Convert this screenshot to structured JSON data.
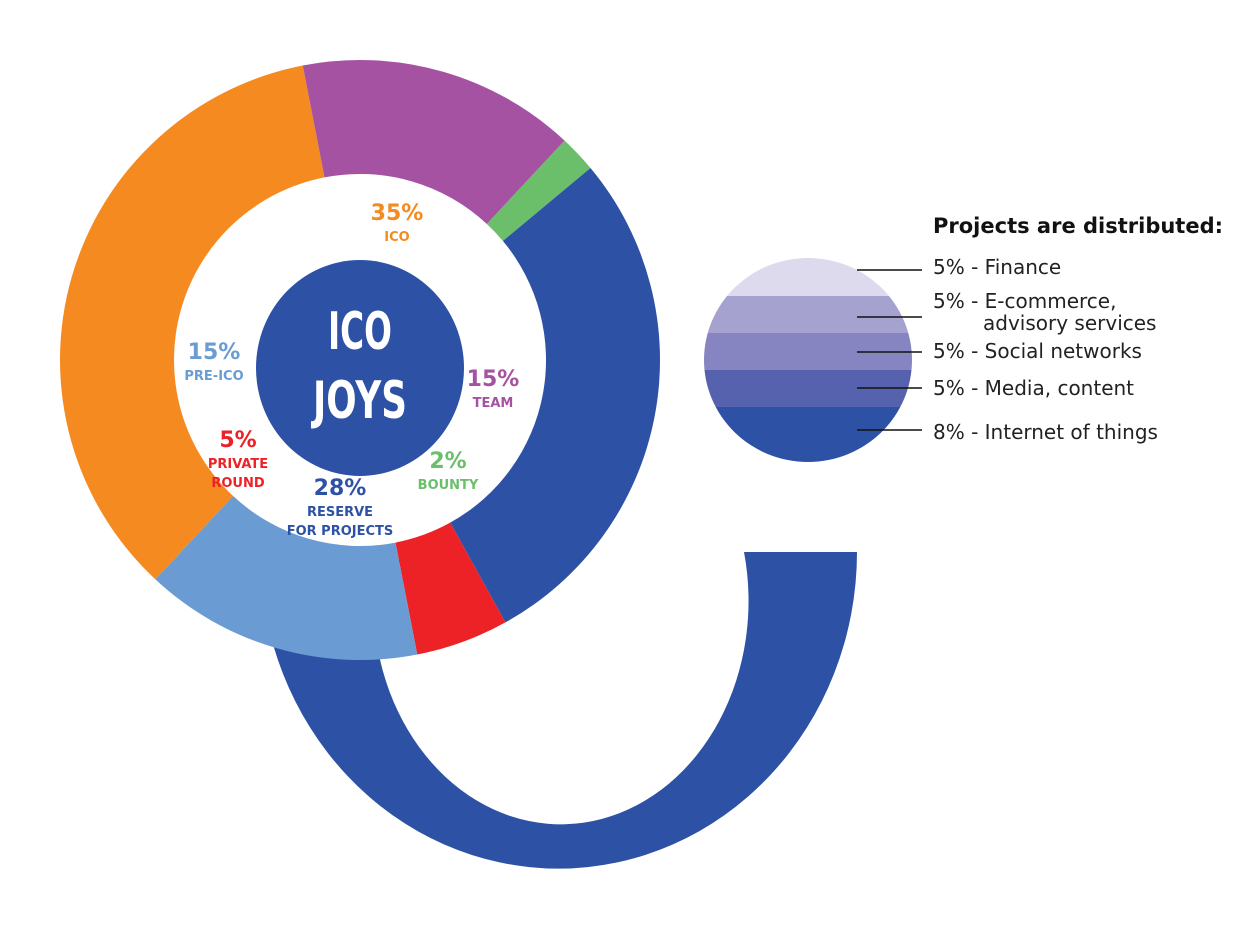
{
  "chart_data": [
    {
      "type": "pie",
      "center_label": [
        "ICO",
        "JOYS"
      ],
      "slices": [
        {
          "label": "ICO",
          "value": 35,
          "value_text": "35%",
          "color": "#F58A20"
        },
        {
          "label": "TEAM",
          "value": 15,
          "value_text": "15%",
          "color": "#A652A2"
        },
        {
          "label": "BOUNTY",
          "value": 2,
          "value_text": "2%",
          "color": "#6BBF6A"
        },
        {
          "label": "RESERVE FOR PROJECTS",
          "label_lines": [
            "RESERVE",
            "FOR PROJECTS"
          ],
          "value": 28,
          "value_text": "28%",
          "color": "#2D52A5"
        },
        {
          "label": "PRIVATE ROUND",
          "label_lines": [
            "PRIVATE",
            "ROUND"
          ],
          "value": 5,
          "value_text": "5%",
          "color": "#EC2227"
        },
        {
          "label": "PRE-ICO",
          "value": 15,
          "value_text": "15%",
          "color": "#6A9BD3"
        }
      ]
    },
    {
      "type": "bar",
      "title": "Projects are distributed:",
      "categories": [
        "Finance",
        "E-commerce, advisory services",
        "Social networks",
        "Media, content",
        "Internet of things"
      ],
      "values": [
        5,
        5,
        5,
        5,
        8
      ],
      "labels": [
        [
          "5% - Finance"
        ],
        [
          "5% - E-commerce,",
          "advisory services"
        ],
        [
          "5% - Social networks"
        ],
        [
          "5% - Media, content"
        ],
        [
          "8% - Internet of things"
        ]
      ],
      "colors": [
        "#DCDAEC",
        "#A5A2D0",
        "#8684C1",
        "#5762AE",
        "#2D52A5"
      ]
    }
  ]
}
